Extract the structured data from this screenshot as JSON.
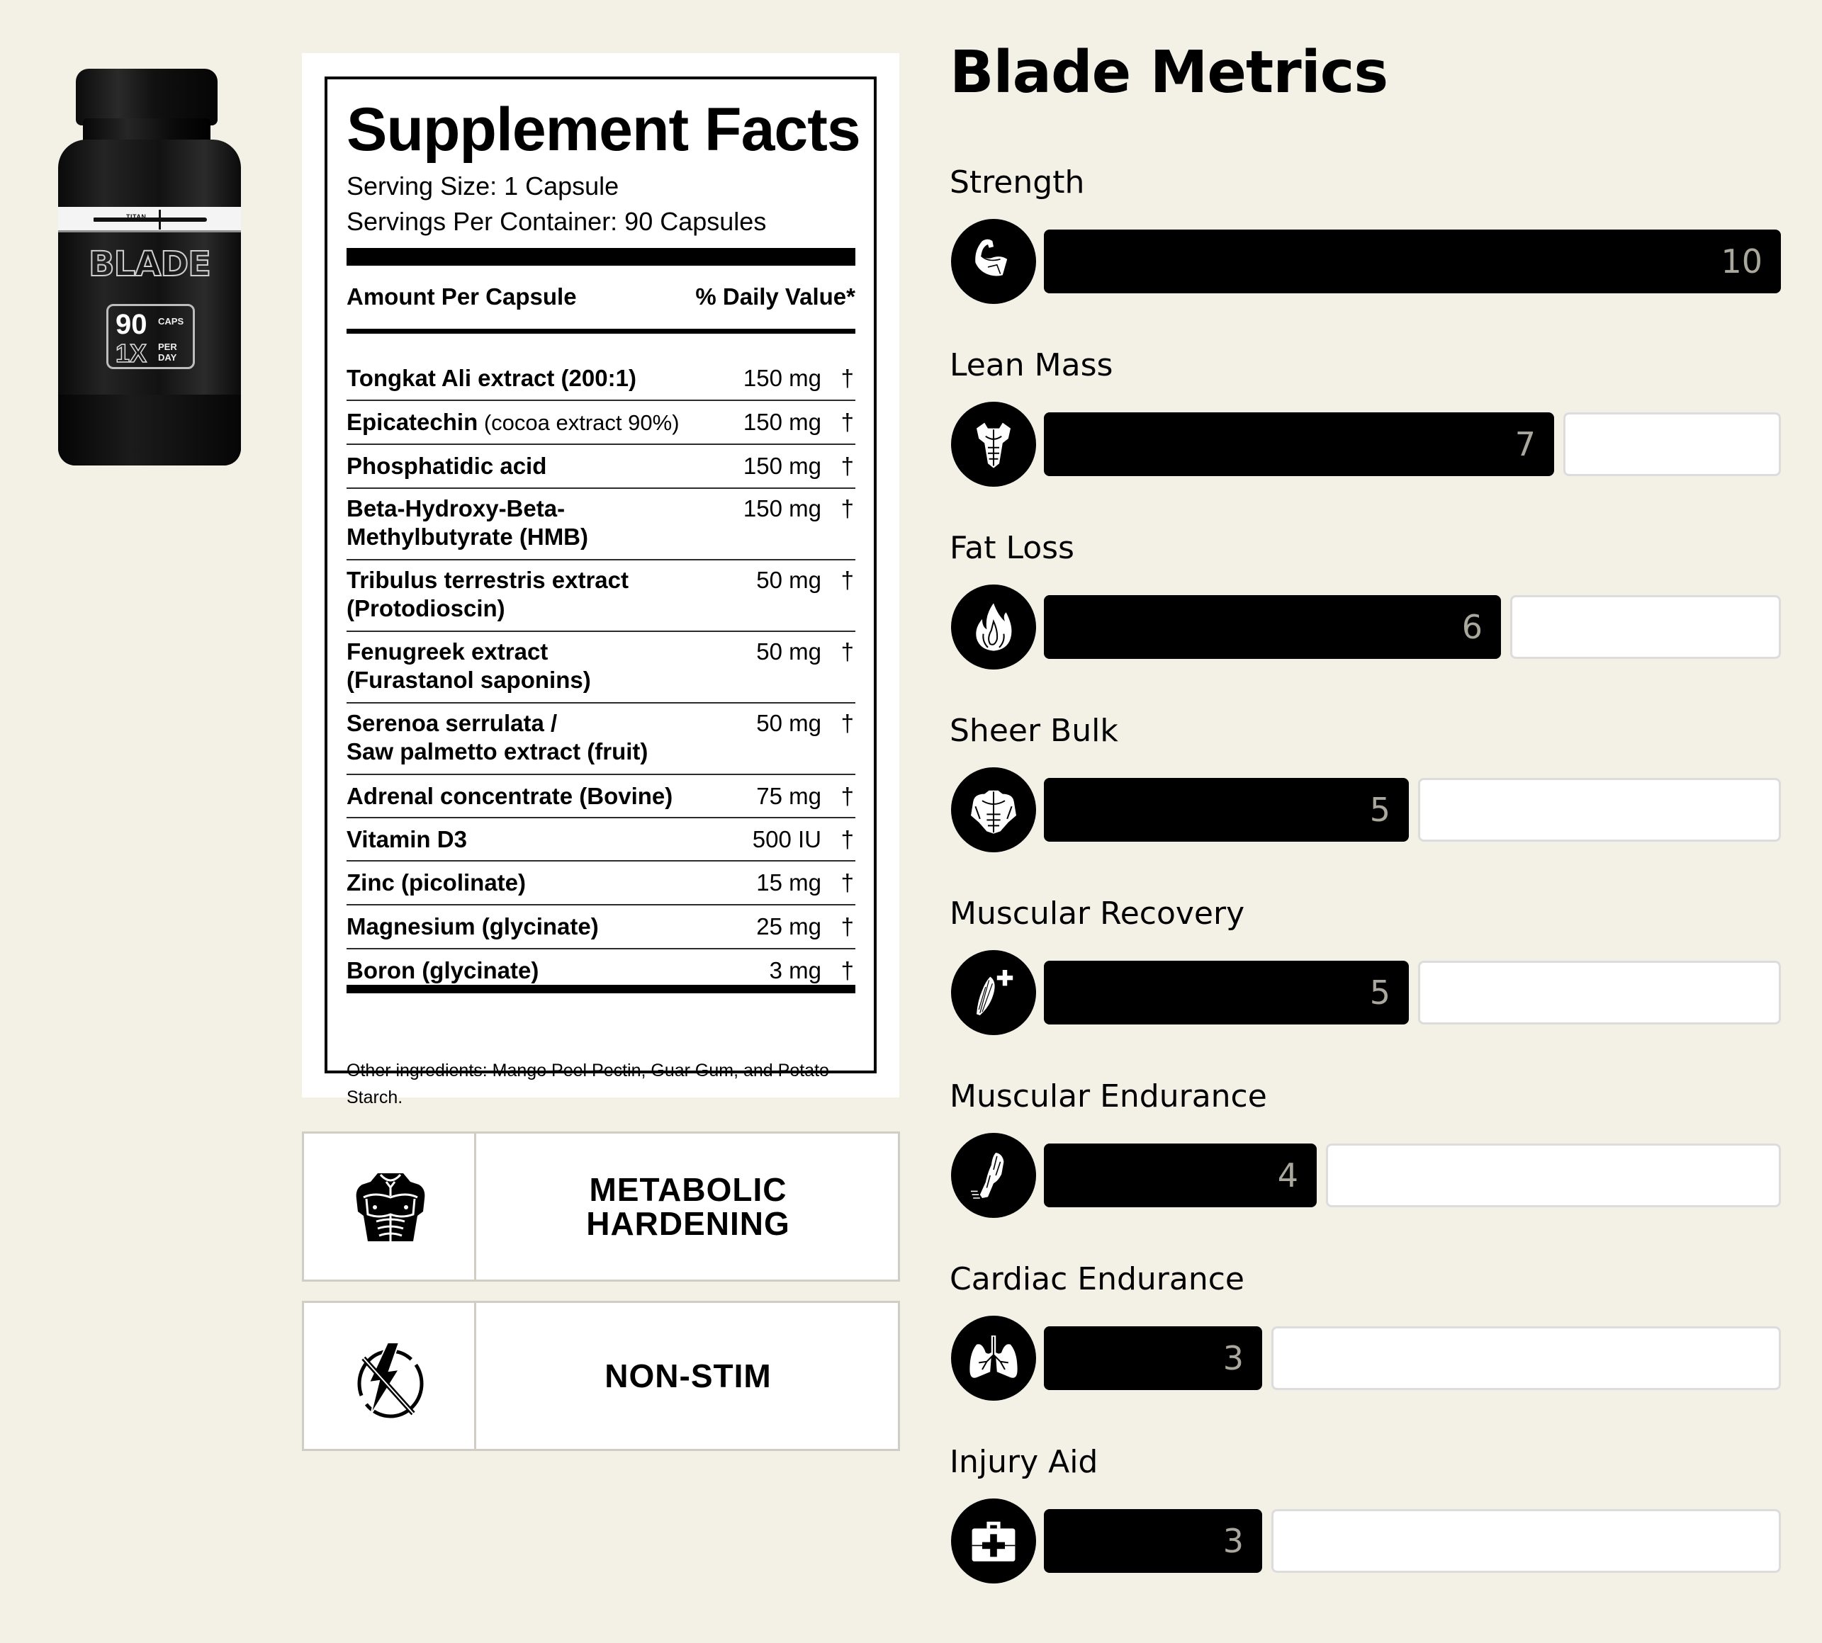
{
  "product": {
    "bottle": {
      "brand_line": "TITAN",
      "name": "BLADE",
      "count": "90",
      "count_unit": "CAPS",
      "dose": "1X",
      "dose_unit": "PER DAY"
    }
  },
  "supplement_facts": {
    "title": "Supplement Facts",
    "serving_size": "Serving Size: 1 Capsule",
    "servings_per_container": "Servings Per Container: 90 Capsules",
    "header_left": "Amount Per Capsule",
    "header_right": "% Daily Value*",
    "rows": [
      {
        "name": "Tongkat Ali extract (200:1)",
        "sub": "",
        "amount": "150 mg",
        "dv": "†"
      },
      {
        "name": "Epicatechin",
        "sub": "(cocoa extract 90%)",
        "amount": "150 mg",
        "dv": "†"
      },
      {
        "name": "Phosphatidic acid",
        "sub": "",
        "amount": "150 mg",
        "dv": "†"
      },
      {
        "name": "Beta-Hydroxy-Beta-\nMethylbutyrate (HMB)",
        "sub": "",
        "amount": "150 mg",
        "dv": "†"
      },
      {
        "name": "Tribulus terrestris extract\n(Protodioscin)",
        "sub": "",
        "amount": "50 mg",
        "dv": "†"
      },
      {
        "name": "Fenugreek extract\n(Furastanol saponins)",
        "sub": "",
        "amount": "50 mg",
        "dv": "†"
      },
      {
        "name": "Serenoa serrulata /\nSaw palmetto extract (fruit)",
        "sub": "",
        "amount": "50 mg",
        "dv": "†"
      },
      {
        "name": "Adrenal concentrate (Bovine)",
        "sub": "",
        "amount": "75 mg",
        "dv": "†"
      },
      {
        "name": "Vitamin D3",
        "sub": "",
        "amount": "500 IU",
        "dv": "†"
      },
      {
        "name": "Zinc (picolinate)",
        "sub": "",
        "amount": "15 mg",
        "dv": "†"
      },
      {
        "name": "Magnesium (glycinate)",
        "sub": "",
        "amount": "25 mg",
        "dv": "†"
      },
      {
        "name": "Boron (glycinate)",
        "sub": "",
        "amount": "3 mg",
        "dv": "†"
      }
    ],
    "other_ingredients": "Other ingredients: Mango Peel Pectin, Guar Gum, and Potato Starch."
  },
  "features": [
    {
      "icon": "torso-armor-icon",
      "label": "METABOLIC\nHARDENING"
    },
    {
      "icon": "no-lightning-icon",
      "label": "NON-STIM"
    }
  ],
  "metrics": {
    "title": "Blade Metrics",
    "max": 10,
    "items": [
      {
        "label": "Strength",
        "value": 10,
        "icon": "flexed-bicep-icon",
        "fill_pct": 100
      },
      {
        "label": "Lean Mass",
        "value": 7,
        "icon": "torso-icon",
        "fill_pct": 69.2
      },
      {
        "label": "Fat Loss",
        "value": 6,
        "icon": "flame-icon",
        "fill_pct": 62
      },
      {
        "label": "Sheer Bulk",
        "value": 5,
        "icon": "bulky-torso-icon",
        "fill_pct": 49.5
      },
      {
        "label": "Muscular Recovery",
        "value": 5,
        "icon": "muscle-plus-icon",
        "fill_pct": 49.5
      },
      {
        "label": "Muscular Endurance",
        "value": 4,
        "icon": "running-leg-icon",
        "fill_pct": 37
      },
      {
        "label": "Cardiac Endurance",
        "value": 3,
        "icon": "lungs-icon",
        "fill_pct": 29.6
      },
      {
        "label": "Injury Aid",
        "value": 3,
        "icon": "first-aid-kit-icon",
        "fill_pct": 29.6
      }
    ]
  },
  "chart_data": {
    "type": "bar",
    "title": "Blade Metrics",
    "orientation": "horizontal",
    "categories": [
      "Strength",
      "Lean Mass",
      "Fat Loss",
      "Sheer Bulk",
      "Muscular Recovery",
      "Muscular Endurance",
      "Cardiac Endurance",
      "Injury Aid"
    ],
    "values": [
      10,
      7,
      6,
      5,
      5,
      4,
      3,
      3
    ],
    "xlim": [
      0,
      10
    ],
    "xlabel": "",
    "ylabel": "",
    "grid": false,
    "legend": "none"
  },
  "colors": {
    "background": "#f3f1e6",
    "bar_fill": "#000000",
    "bar_empty": "#ffffff",
    "bar_empty_border": "#dcdcdc",
    "value_text": "#aaa79d",
    "feature_border": "#cfcdc4"
  }
}
